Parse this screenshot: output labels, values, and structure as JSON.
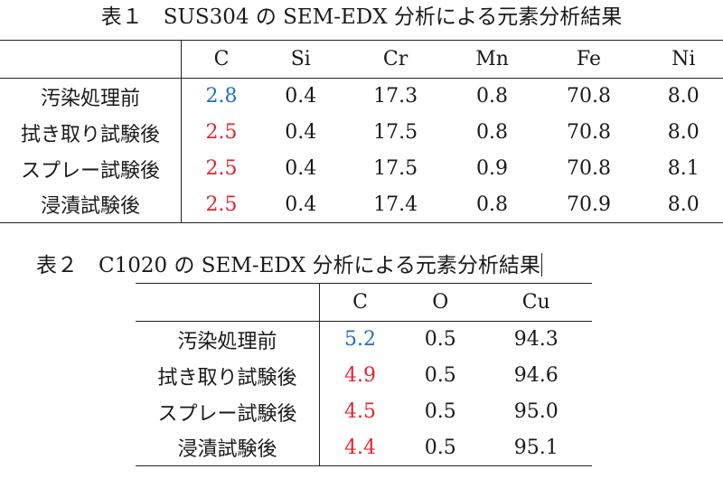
{
  "table1": {
    "caption": "表１　SUS304 の SEM-EDX 分析による元素分析結果",
    "columns": [
      "C",
      "Si",
      "Cr",
      "Mn",
      "Fe",
      "Ni"
    ],
    "rows": [
      {
        "label": "汚染処理前",
        "values": [
          "2.8",
          "0.4",
          "17.3",
          "0.8",
          "70.8",
          "8.0"
        ]
      },
      {
        "label": "拭き取り試験後",
        "values": [
          "2.5",
          "0.4",
          "17.5",
          "0.8",
          "70.8",
          "8.0"
        ]
      },
      {
        "label": "スプレー試験後",
        "values": [
          "2.5",
          "0.4",
          "17.5",
          "0.9",
          "70.8",
          "8.1"
        ]
      },
      {
        "label": "浸漬試験後",
        "values": [
          "2.5",
          "0.4",
          "17.4",
          "0.8",
          "70.9",
          "8.0"
        ]
      }
    ]
  },
  "table2": {
    "caption": "表２　C1020 の SEM-EDX 分析による元素分析結果",
    "columns": [
      "C",
      "O",
      "Cu"
    ],
    "rows": [
      {
        "label": "汚染処理前",
        "values": [
          "5.2",
          "0.5",
          "94.3"
        ]
      },
      {
        "label": "拭き取り試験後",
        "values": [
          "4.9",
          "0.5",
          "94.6"
        ]
      },
      {
        "label": "スプレー試験後",
        "values": [
          "4.5",
          "0.5",
          "95.0"
        ]
      },
      {
        "label": "浸漬試験後",
        "values": [
          "4.4",
          "0.5",
          "95.1"
        ]
      }
    ]
  },
  "colors": {
    "baseline": "#1f6fc0",
    "after_test": "#e0262e",
    "text": "#1a1a1a"
  }
}
